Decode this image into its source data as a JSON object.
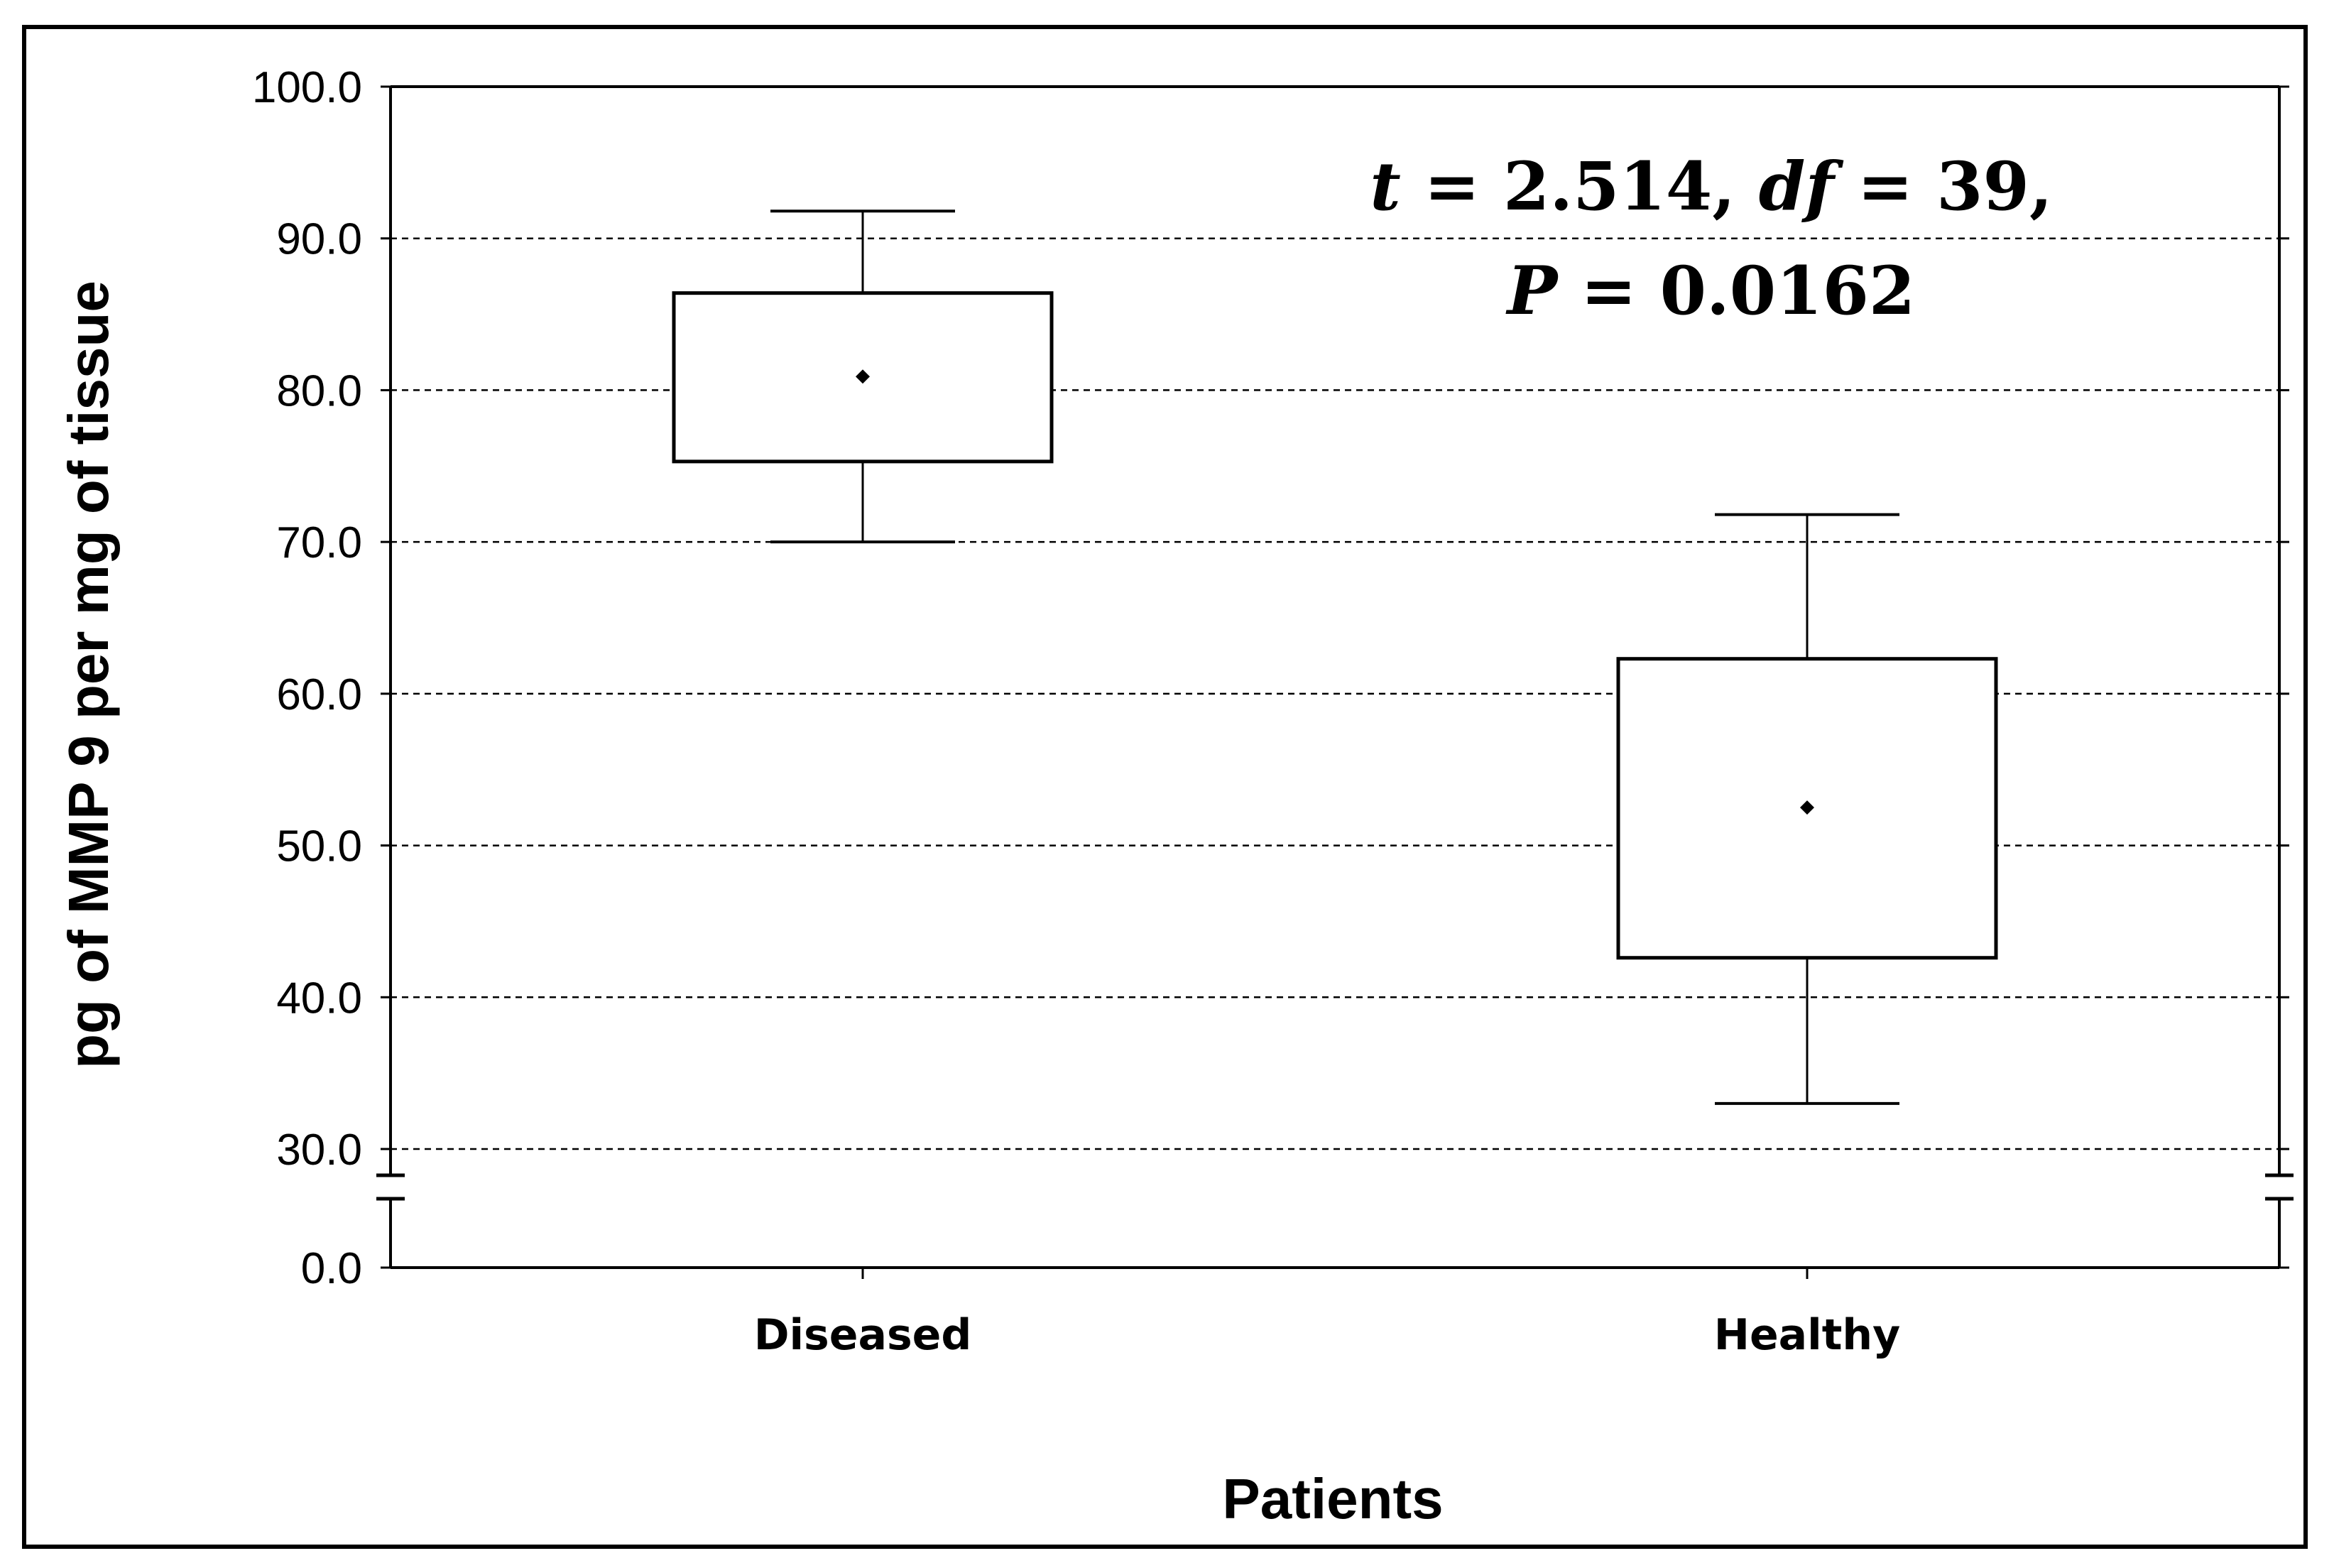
{
  "chart_data": {
    "type": "box",
    "xlabel": "Patients",
    "ylabel": "pg of MMP 9 per mg of tissue",
    "categories": [
      "Diseased",
      "Healthy"
    ],
    "boxes": [
      {
        "category": "Diseased",
        "whisker_low": 70.0,
        "q1": 75.3,
        "mean": 80.9,
        "q3": 86.4,
        "whisker_high": 91.8
      },
      {
        "category": "Healthy",
        "whisker_low": 33.0,
        "q1": 42.6,
        "mean": 52.5,
        "q3": 62.3,
        "whisker_high": 71.8
      }
    ],
    "ylim": [
      30,
      100
    ],
    "axis_break": true,
    "y_ticks": [
      "0.0",
      "30.0",
      "40.0",
      "50.0",
      "60.0",
      "70.0",
      "80.0",
      "90.0",
      "100.0"
    ],
    "grid": "dashed horizontal at each 10 unit tick",
    "annotation": {
      "line1": {
        "t_sym": "t",
        "t_rest": " = 2.514, ",
        "df_sym": "df",
        "df_rest": " = 39,"
      },
      "line2": {
        "p_sym": "P",
        "p_rest": " = 0.0162"
      }
    }
  }
}
